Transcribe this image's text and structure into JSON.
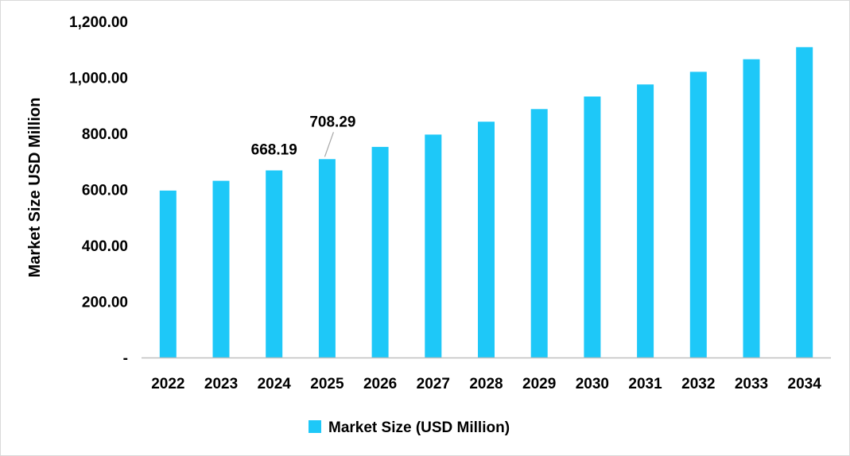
{
  "chart_data": {
    "type": "bar",
    "title": "",
    "xlabel": "",
    "ylabel": "Market Size USD Million",
    "ylim": [
      0,
      1200
    ],
    "categories": [
      "2022",
      "2023",
      "2024",
      "2025",
      "2026",
      "2027",
      "2028",
      "2029",
      "2030",
      "2031",
      "2032",
      "2033",
      "2034"
    ],
    "series": [
      {
        "name": "Market Size (USD Million)",
        "color": "#1ec8f8",
        "values": [
          596.0,
          631.0,
          668.19,
          708.29,
          752.0,
          796.0,
          842.0,
          887.0,
          932.0,
          975.0,
          1020.0,
          1065.0,
          1108.0
        ]
      }
    ],
    "y_ticks": [
      {
        "value": 0,
        "label": "-"
      },
      {
        "value": 200,
        "label": "200.00"
      },
      {
        "value": 400,
        "label": "400.00"
      },
      {
        "value": 600,
        "label": "600.00"
      },
      {
        "value": 800,
        "label": "800.00"
      },
      {
        "value": 1000,
        "label": "1,000.00"
      },
      {
        "value": 1200,
        "label": "1,200.00"
      }
    ],
    "data_labels": [
      {
        "category": "2024",
        "text": "668.19"
      },
      {
        "category": "2025",
        "text": "708.29"
      }
    ],
    "legend": {
      "label": "Market Size (USD Million)",
      "placement": "bottom"
    },
    "grid": false
  },
  "colors": {
    "bar": "#1ec8f8",
    "axis": "#bfbfbf",
    "leader": "#a6a6a6"
  }
}
